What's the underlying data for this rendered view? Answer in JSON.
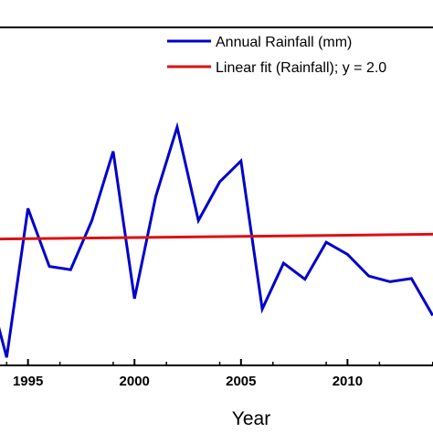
{
  "chart_data": {
    "type": "line",
    "xlabel": "Year",
    "ylabel": "",
    "title": "",
    "x_ticks": [
      1995,
      2000,
      2005,
      2010
    ],
    "xlim": [
      1993.6,
      2014.1
    ],
    "ylim": [
      0,
      420
    ],
    "legend_position": "top-right",
    "series": [
      {
        "name": "Annual Rainfall (mm)",
        "color": "#0000cc",
        "x": [
          1993,
          1994,
          1995,
          1996,
          1997,
          1998,
          1999,
          2000,
          2001,
          2002,
          2003,
          2004,
          2005,
          2006,
          2007,
          2008,
          2009,
          2010,
          2011,
          2012,
          2013,
          2014
        ],
        "y": [
          110,
          10,
          195,
          123,
          119,
          180,
          266,
          83,
          210,
          296,
          180,
          228,
          254,
          70,
          127,
          107,
          153,
          138,
          111,
          104,
          108,
          62
        ]
      },
      {
        "name": "Linear fit (Rainfall); y = 2.0",
        "color": "#dd1111",
        "x": [
          1993.6,
          2014.1
        ],
        "y": [
          157,
          163
        ]
      }
    ]
  }
}
